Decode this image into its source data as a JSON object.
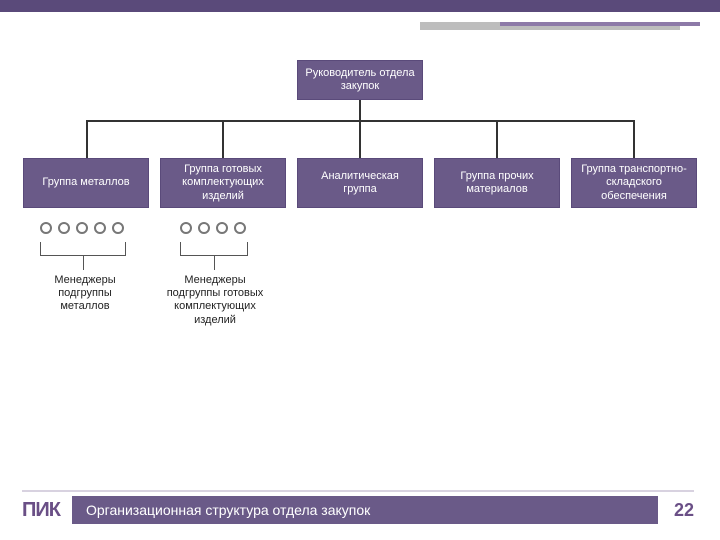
{
  "org_chart": {
    "type": "tree",
    "colors": {
      "node_fill": "#6a5a88",
      "node_border": "#5a4a7a",
      "node_text": "#ffffff",
      "connector": "#333333",
      "circle_border": "#777777",
      "bracket": "#555555",
      "label_text": "#222222"
    },
    "root": {
      "label": "Руководитель отдела закупок"
    },
    "children": [
      {
        "label": "Группа металлов"
      },
      {
        "label": "Группа готовых комплектующих изделий"
      },
      {
        "label": "Аналитическая группа"
      },
      {
        "label": "Группа прочих материалов"
      },
      {
        "label": "Группа транспортно-складского обеспечения"
      }
    ],
    "manager_groups": [
      {
        "under_child": 0,
        "count": 5,
        "label": "Менеджеры подгруппы металлов"
      },
      {
        "under_child": 1,
        "count": 4,
        "label": "Менеджеры подгруппы готовых комплектующих изделий"
      }
    ],
    "node_fontsize": 11,
    "label_fontsize": 11
  },
  "decor": {
    "topbar1_color": "#5a4a7a",
    "topbar2_color": "#bdbdbd",
    "topbar3_color": "#8d7aa8"
  },
  "footer": {
    "logo_text": "ПИК",
    "logo_color": "#6a4f86",
    "title": "Организационная структура отдела закупок",
    "title_bg": "#6a5a88",
    "title_color": "#ffffff",
    "page_number": "22",
    "pagenum_color": "#6a4f86",
    "divider_color": "#d8d2e0"
  }
}
